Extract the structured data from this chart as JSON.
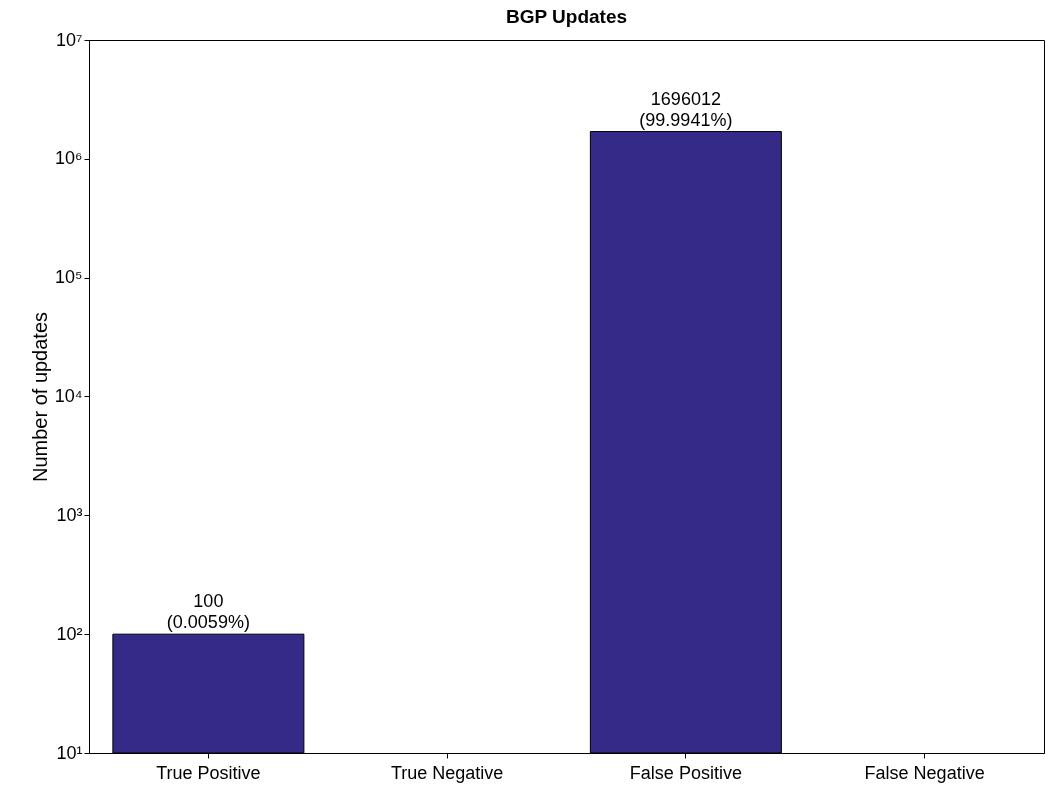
{
  "chart_data": {
    "type": "bar",
    "title": "BGP Updates",
    "ylabel": "Number of updates",
    "categories": [
      "True Positive",
      "True Negative",
      "False Positive",
      "False Negative"
    ],
    "values": [
      100,
      null,
      1696012,
      null
    ],
    "value_labels": [
      "100\n(0.0059%)",
      null,
      "1696012\n(99.9941%)",
      null
    ],
    "color": "#352a87",
    "log": true,
    "ylim": [
      10,
      10000000
    ],
    "yticks": [
      {
        "value": 10,
        "label": "10¹"
      },
      {
        "value": 100,
        "label": "10²"
      },
      {
        "value": 1000,
        "label": "10³"
      },
      {
        "value": 10000,
        "label": "10⁴"
      },
      {
        "value": 100000,
        "label": "10⁵"
      },
      {
        "value": 1000000,
        "label": "10⁶"
      },
      {
        "value": 10000000,
        "label": "10⁷"
      }
    ],
    "grid": false
  }
}
